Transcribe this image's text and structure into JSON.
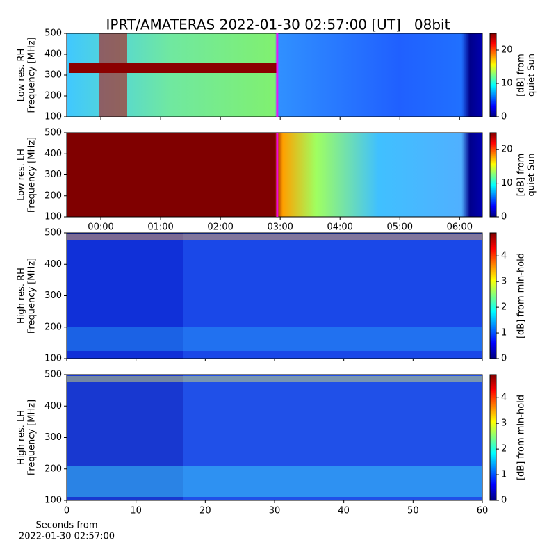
{
  "chart_data": [
    {
      "type": "heatmap",
      "title": "IPRT/AMATERAS 2022-01-30 02:57:00 [UT]   08bit",
      "ylabel": [
        "Low res. RH",
        "Frequency [MHz]"
      ],
      "ylim": [
        100,
        500
      ],
      "yticks": [
        100,
        200,
        300,
        400,
        500
      ],
      "xlim": [
        -0.57,
        6.38
      ],
      "colormap": "jet",
      "colorbar_label": [
        "[dB] from",
        "quiet Sun"
      ],
      "clim": [
        0,
        25
      ],
      "cticks": [
        0,
        10,
        20
      ],
      "marker": {
        "x": 2.95,
        "color": "#ff00ff"
      }
    },
    {
      "type": "heatmap",
      "ylabel": [
        "Low res. LH",
        "Frequency [MHz]"
      ],
      "ylim": [
        100,
        500
      ],
      "yticks": [
        100,
        200,
        300,
        400,
        500
      ],
      "xlim": [
        -0.57,
        6.38
      ],
      "xticks": [
        {
          "value": 0,
          "label": "00:00"
        },
        {
          "value": 1,
          "label": "01:00"
        },
        {
          "value": 2,
          "label": "02:00"
        },
        {
          "value": 3,
          "label": "03:00"
        },
        {
          "value": 4,
          "label": "04:00"
        },
        {
          "value": 5,
          "label": "05:00"
        },
        {
          "value": 6,
          "label": "06:00"
        }
      ],
      "colormap": "jet",
      "colorbar_label": [
        "[dB] from",
        "quiet Sun"
      ],
      "clim": [
        0,
        25
      ],
      "cticks": [
        0,
        10,
        20
      ],
      "marker": {
        "x": 2.95,
        "color": "#ff00ff"
      }
    },
    {
      "type": "heatmap",
      "ylabel": [
        "High res. RH",
        "Frequency [MHz]"
      ],
      "ylim": [
        100,
        500
      ],
      "yticks": [
        100,
        200,
        300,
        400,
        500
      ],
      "xlim": [
        0,
        60
      ],
      "colormap": "jet",
      "colorbar_label": [
        "[dB] from min-hold"
      ],
      "clim": [
        0,
        4.9
      ],
      "cticks": [
        0,
        1,
        2,
        3,
        4
      ]
    },
    {
      "type": "heatmap",
      "ylabel": [
        "High res. LH",
        "Frequency [MHz]"
      ],
      "ylim": [
        100,
        500
      ],
      "yticks": [
        100,
        200,
        300,
        400,
        500
      ],
      "xlim": [
        0,
        60
      ],
      "xticks": [
        0,
        10,
        20,
        30,
        40,
        50,
        60
      ],
      "xlabel": [
        "Seconds from",
        "2022-01-30 02:57:00"
      ],
      "colormap": "jet",
      "colorbar_label": [
        "[dB] from min-hold"
      ],
      "clim": [
        0,
        4.9
      ],
      "cticks": [
        0,
        1,
        2,
        3,
        4
      ]
    }
  ]
}
